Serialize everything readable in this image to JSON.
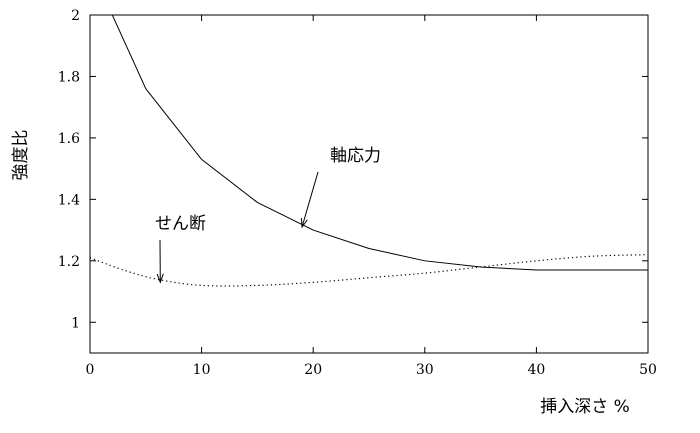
{
  "chart_data": {
    "type": "line",
    "xlabel": "挿入深さ %",
    "ylabel": "強度比",
    "xlim": [
      0,
      50
    ],
    "ylim": [
      0.9,
      2.0
    ],
    "x_ticks": [
      "0",
      "10",
      "20",
      "30",
      "40",
      "50"
    ],
    "y_ticks": [
      "1",
      "1.2",
      "1.4",
      "1.6",
      "1.8",
      "2"
    ],
    "grid": false,
    "series": [
      {
        "name": "軸応力",
        "style": "solid",
        "x": [
          2,
          5,
          10,
          15,
          20,
          25,
          30,
          35,
          40,
          45,
          50
        ],
        "y": [
          2.0,
          1.76,
          1.53,
          1.39,
          1.3,
          1.24,
          1.2,
          1.18,
          1.17,
          1.17,
          1.17
        ]
      },
      {
        "name": "せん断",
        "style": "dotted",
        "x": [
          0,
          3,
          6,
          10,
          15,
          20,
          25,
          30,
          35,
          40,
          45,
          50
        ],
        "y": [
          1.21,
          1.17,
          1.14,
          1.12,
          1.12,
          1.13,
          1.145,
          1.16,
          1.18,
          1.2,
          1.215,
          1.22
        ]
      }
    ],
    "annotations": [
      {
        "text": "軸応力",
        "target_x": 19,
        "target_y": 1.31
      },
      {
        "text": "せん断",
        "target_x": 6.3,
        "target_y": 1.13
      }
    ]
  }
}
